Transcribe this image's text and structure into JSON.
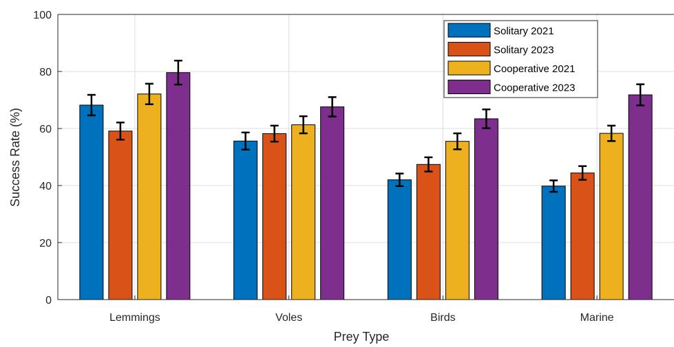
{
  "chart_data": {
    "type": "bar",
    "title": "",
    "xlabel": "Prey Type",
    "ylabel": "Success Rate (%)",
    "ylim": [
      0,
      100
    ],
    "yticks": [
      0,
      20,
      40,
      60,
      80,
      100
    ],
    "grid": true,
    "legend_position": "top-right",
    "categories": [
      "Lemmings",
      "Voles",
      "Birds",
      "Marine"
    ],
    "series": [
      {
        "name": "Solitary 2021",
        "color": "#0072BD",
        "values": [
          68.2,
          55.6,
          42.0,
          39.8
        ],
        "errors": [
          3.6,
          3.0,
          2.2,
          2.0
        ]
      },
      {
        "name": "Solitary 2023",
        "color": "#D95319",
        "values": [
          59.1,
          58.2,
          47.4,
          44.4
        ],
        "errors": [
          3.0,
          2.8,
          2.5,
          2.4
        ]
      },
      {
        "name": "Cooperative 2021",
        "color": "#EDB120",
        "values": [
          72.1,
          61.3,
          55.5,
          58.3
        ],
        "errors": [
          3.6,
          3.0,
          2.8,
          2.7
        ]
      },
      {
        "name": "Cooperative 2023",
        "color": "#7E2F8E",
        "values": [
          79.6,
          67.6,
          63.4,
          71.8
        ],
        "errors": [
          4.2,
          3.4,
          3.3,
          3.7
        ]
      }
    ]
  }
}
